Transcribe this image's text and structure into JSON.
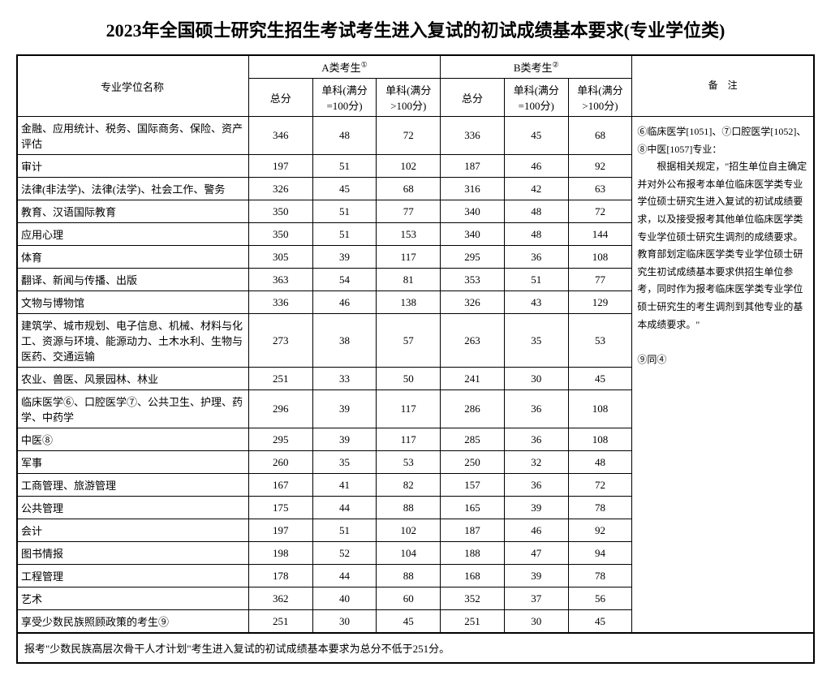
{
  "title": "2023年全国硕士研究生招生考试考生进入复试的初试成绩基本要求(专业学位类)",
  "headers": {
    "name": "专业学位名称",
    "groupA": "A类考生",
    "groupB": "B类考生",
    "total": "总分",
    "sub100": "单科(满分=100分)",
    "subOver100": "单科(满分>100分)",
    "notes": "备　注",
    "supA": "①",
    "supB": "②"
  },
  "rows": [
    {
      "name": "金融、应用统计、税务、国际商务、保险、资产评估",
      "a1": "346",
      "a2": "48",
      "a3": "72",
      "b1": "336",
      "b2": "45",
      "b3": "68"
    },
    {
      "name": "审计",
      "a1": "197",
      "a2": "51",
      "a3": "102",
      "b1": "187",
      "b2": "46",
      "b3": "92"
    },
    {
      "name": "法律(非法学)、法律(法学)、社会工作、警务",
      "a1": "326",
      "a2": "45",
      "a3": "68",
      "b1": "316",
      "b2": "42",
      "b3": "63"
    },
    {
      "name": "教育、汉语国际教育",
      "a1": "350",
      "a2": "51",
      "a3": "77",
      "b1": "340",
      "b2": "48",
      "b3": "72"
    },
    {
      "name": "应用心理",
      "a1": "350",
      "a2": "51",
      "a3": "153",
      "b1": "340",
      "b2": "48",
      "b3": "144"
    },
    {
      "name": "体育",
      "a1": "305",
      "a2": "39",
      "a3": "117",
      "b1": "295",
      "b2": "36",
      "b3": "108"
    },
    {
      "name": "翻译、新闻与传播、出版",
      "a1": "363",
      "a2": "54",
      "a3": "81",
      "b1": "353",
      "b2": "51",
      "b3": "77"
    },
    {
      "name": "文物与博物馆",
      "a1": "336",
      "a2": "46",
      "a3": "138",
      "b1": "326",
      "b2": "43",
      "b3": "129"
    },
    {
      "name": "建筑学、城市规划、电子信息、机械、材料与化工、资源与环境、能源动力、土木水利、生物与医药、交通运输",
      "a1": "273",
      "a2": "38",
      "a3": "57",
      "b1": "263",
      "b2": "35",
      "b3": "53"
    },
    {
      "name": "农业、兽医、风景园林、林业",
      "a1": "251",
      "a2": "33",
      "a3": "50",
      "b1": "241",
      "b2": "30",
      "b3": "45"
    },
    {
      "name": "临床医学⑥、口腔医学⑦、公共卫生、护理、药学、中药学",
      "a1": "296",
      "a2": "39",
      "a3": "117",
      "b1": "286",
      "b2": "36",
      "b3": "108"
    },
    {
      "name": "中医⑧",
      "a1": "295",
      "a2": "39",
      "a3": "117",
      "b1": "285",
      "b2": "36",
      "b3": "108"
    },
    {
      "name": "军事",
      "a1": "260",
      "a2": "35",
      "a3": "53",
      "b1": "250",
      "b2": "32",
      "b3": "48"
    },
    {
      "name": "工商管理、旅游管理",
      "a1": "167",
      "a2": "41",
      "a3": "82",
      "b1": "157",
      "b2": "36",
      "b3": "72"
    },
    {
      "name": "公共管理",
      "a1": "175",
      "a2": "44",
      "a3": "88",
      "b1": "165",
      "b2": "39",
      "b3": "78"
    },
    {
      "name": "会计",
      "a1": "197",
      "a2": "51",
      "a3": "102",
      "b1": "187",
      "b2": "46",
      "b3": "92"
    },
    {
      "name": "图书情报",
      "a1": "198",
      "a2": "52",
      "a3": "104",
      "b1": "188",
      "b2": "47",
      "b3": "94"
    },
    {
      "name": "工程管理",
      "a1": "178",
      "a2": "44",
      "a3": "88",
      "b1": "168",
      "b2": "39",
      "b3": "78"
    },
    {
      "name": "艺术",
      "a1": "362",
      "a2": "40",
      "a3": "60",
      "b1": "352",
      "b2": "37",
      "b3": "56"
    },
    {
      "name": "享受少数民族照顾政策的考生⑨",
      "a1": "251",
      "a2": "30",
      "a3": "45",
      "b1": "251",
      "b2": "30",
      "b3": "45"
    }
  ],
  "notes_text": "⑥临床医学[1051]、⑦口腔医学[1052]、⑧中医[1057]专业：\n　　根据相关规定，\"招生单位自主确定并对外公布报考本单位临床医学类专业学位硕士研究生进入复试的初试成绩要求，以及接受报考其他单位临床医学类专业学位硕士研究生调剂的成绩要求。教育部划定临床医学类专业学位硕士研究生初试成绩基本要求供招生单位参考，同时作为报考临床医学类专业学位硕士研究生的考生调剂到其他专业的基本成绩要求。\"\n\n⑨同④",
  "footer": "报考\"少数民族高层次骨干人才计划\"考生进入复试的初试成绩基本要求为总分不低于251分。"
}
